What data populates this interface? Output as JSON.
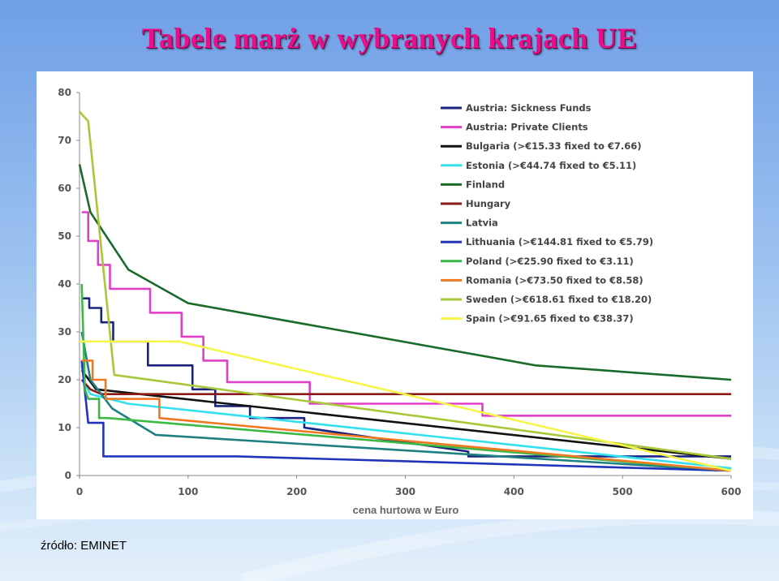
{
  "slide": {
    "title": "Tabele marż w wybranych krajach UE",
    "source": "źródło: EMINET"
  },
  "chart_data": {
    "type": "line",
    "title": "",
    "xlabel": "cena hurtowa w Euro",
    "ylabel": "",
    "xlim": [
      0,
      600
    ],
    "ylim": [
      0,
      80
    ],
    "xticks": [
      0,
      100,
      200,
      300,
      400,
      500,
      600
    ],
    "yticks": [
      0,
      10,
      20,
      30,
      40,
      50,
      60,
      70,
      80
    ],
    "grid": false,
    "legend_position": "top-right",
    "series": [
      {
        "name": "Austria: Sickness Funds",
        "color": "#1a237e",
        "points": [
          [
            2,
            37
          ],
          [
            9,
            37
          ],
          [
            9,
            35
          ],
          [
            20,
            35
          ],
          [
            20,
            32
          ],
          [
            31,
            32
          ],
          [
            31,
            28
          ],
          [
            63,
            28
          ],
          [
            63,
            23
          ],
          [
            104,
            23
          ],
          [
            104,
            18
          ],
          [
            125,
            18
          ],
          [
            125,
            14.5
          ],
          [
            157,
            14.5
          ],
          [
            157,
            12
          ],
          [
            207,
            12
          ],
          [
            207,
            10
          ],
          [
            358,
            5
          ],
          [
            358,
            4
          ],
          [
            600,
            4
          ]
        ]
      },
      {
        "name": "Austria: Private Clients",
        "color": "#e040c8",
        "points": [
          [
            2,
            55
          ],
          [
            8,
            55
          ],
          [
            8,
            49
          ],
          [
            17,
            49
          ],
          [
            17,
            44
          ],
          [
            28,
            44
          ],
          [
            28,
            39
          ],
          [
            65,
            39
          ],
          [
            65,
            34
          ],
          [
            94,
            34
          ],
          [
            94,
            29
          ],
          [
            114,
            29
          ],
          [
            114,
            24
          ],
          [
            136,
            24
          ],
          [
            136,
            19.5
          ],
          [
            212,
            19.5
          ],
          [
            212,
            15
          ],
          [
            371,
            15
          ],
          [
            371,
            12.5
          ],
          [
            600,
            12.5
          ]
        ]
      },
      {
        "name": "Bulgaria (>€15.33 fixed to €7.66)",
        "color": "#111111",
        "points": [
          [
            2,
            22
          ],
          [
            15.33,
            18
          ],
          [
            600,
            3.5
          ]
        ]
      },
      {
        "name": "Estonia (>€44.74 fixed to €5.11)",
        "color": "#33e0ee",
        "points": [
          [
            2,
            23
          ],
          [
            5,
            19
          ],
          [
            10,
            17
          ],
          [
            44.74,
            15
          ],
          [
            600,
            1.5
          ]
        ]
      },
      {
        "name": "Finland",
        "color": "#1a6b2a",
        "points": [
          [
            0,
            65
          ],
          [
            10,
            55
          ],
          [
            45,
            43
          ],
          [
            100,
            36
          ],
          [
            420,
            23
          ],
          [
            600,
            20
          ]
        ]
      },
      {
        "name": "Hungary",
        "color": "#8b1a1a",
        "points": [
          [
            2,
            20
          ],
          [
            10,
            18
          ],
          [
            20,
            17
          ],
          [
            600,
            17
          ]
        ]
      },
      {
        "name": "Latvia",
        "color": "#1f8080",
        "points": [
          [
            2,
            30
          ],
          [
            10,
            20
          ],
          [
            30,
            14
          ],
          [
            70,
            8.5
          ],
          [
            600,
            1
          ]
        ]
      },
      {
        "name": "Lithuania (>€144.81 fixed to €5.79)",
        "color": "#2233bb",
        "points": [
          [
            2,
            24
          ],
          [
            8,
            11
          ],
          [
            22,
            11
          ],
          [
            22,
            4
          ],
          [
            144.81,
            4
          ],
          [
            600,
            1
          ]
        ]
      },
      {
        "name": "Poland (>€25.90 fixed to €3.11)",
        "color": "#3cb844",
        "points": [
          [
            2,
            40
          ],
          [
            5,
            18
          ],
          [
            8,
            16
          ],
          [
            18,
            16
          ],
          [
            18,
            12
          ],
          [
            25.9,
            12
          ],
          [
            600,
            1
          ]
        ]
      },
      {
        "name": "Romania (>€73.50 fixed to €8.58)",
        "color": "#f07820",
        "points": [
          [
            2,
            24
          ],
          [
            12,
            24
          ],
          [
            12,
            20
          ],
          [
            24,
            20
          ],
          [
            24,
            16
          ],
          [
            73.5,
            16
          ],
          [
            73.5,
            12
          ],
          [
            600,
            1
          ]
        ]
      },
      {
        "name": "Sweden (>€618.61 fixed to €18.20)",
        "color": "#a8c83a",
        "points": [
          [
            0,
            76
          ],
          [
            8,
            74
          ],
          [
            32,
            21
          ],
          [
            600,
            3.5
          ]
        ]
      },
      {
        "name": "Spain (>€91.65 fixed to €38.37)",
        "color": "#f5f54a",
        "points": [
          [
            0,
            28
          ],
          [
            91.65,
            28
          ],
          [
            600,
            1
          ]
        ]
      }
    ]
  }
}
